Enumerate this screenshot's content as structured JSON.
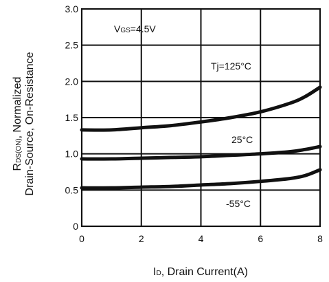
{
  "chart_data": {
    "type": "line",
    "xlabel": {
      "main": "I",
      "sub": "D",
      "rest": ", Drain Current(A)"
    },
    "ylabel_line1": {
      "main": "R",
      "sub": "DS(ON)",
      "rest": ", Normalized"
    },
    "ylabel_line2": "Drain-Source, On-Resistance",
    "xlim": [
      0,
      8
    ],
    "ylim": [
      0,
      3.0
    ],
    "x_ticks": [
      0,
      2,
      4,
      6,
      8
    ],
    "x_tick_labels": [
      "0",
      "2",
      "4",
      "6",
      "8"
    ],
    "y_ticks": [
      0,
      0.5,
      1.0,
      1.5,
      2.0,
      2.5,
      3.0
    ],
    "y_tick_labels": [
      "0",
      "0.5",
      "1.0",
      "1.5",
      "2.0",
      "2.5",
      "3.0"
    ],
    "grid": true,
    "condition": {
      "main": "V",
      "sub": "GS",
      "rest": "=4.5V"
    },
    "series": [
      {
        "name": "Tj=125°C",
        "color": "#111111",
        "x": [
          0,
          1,
          2,
          3,
          4,
          5,
          6,
          7,
          7.5,
          8
        ],
        "y": [
          1.33,
          1.33,
          1.36,
          1.39,
          1.44,
          1.5,
          1.58,
          1.7,
          1.79,
          1.92
        ]
      },
      {
        "name": "25°C",
        "color": "#111111",
        "x": [
          0,
          1,
          2,
          3,
          4,
          5,
          6,
          7,
          7.5,
          8
        ],
        "y": [
          0.93,
          0.93,
          0.94,
          0.95,
          0.96,
          0.98,
          1.0,
          1.03,
          1.06,
          1.1
        ]
      },
      {
        "name": "-55°C",
        "color": "#111111",
        "x": [
          0,
          1,
          2,
          3,
          4,
          5,
          6,
          7,
          7.5,
          8
        ],
        "y": [
          0.53,
          0.53,
          0.54,
          0.55,
          0.57,
          0.59,
          0.62,
          0.66,
          0.7,
          0.78
        ]
      }
    ],
    "annotations": [
      "Tj=125°C",
      "25°C",
      "-55°C"
    ]
  }
}
